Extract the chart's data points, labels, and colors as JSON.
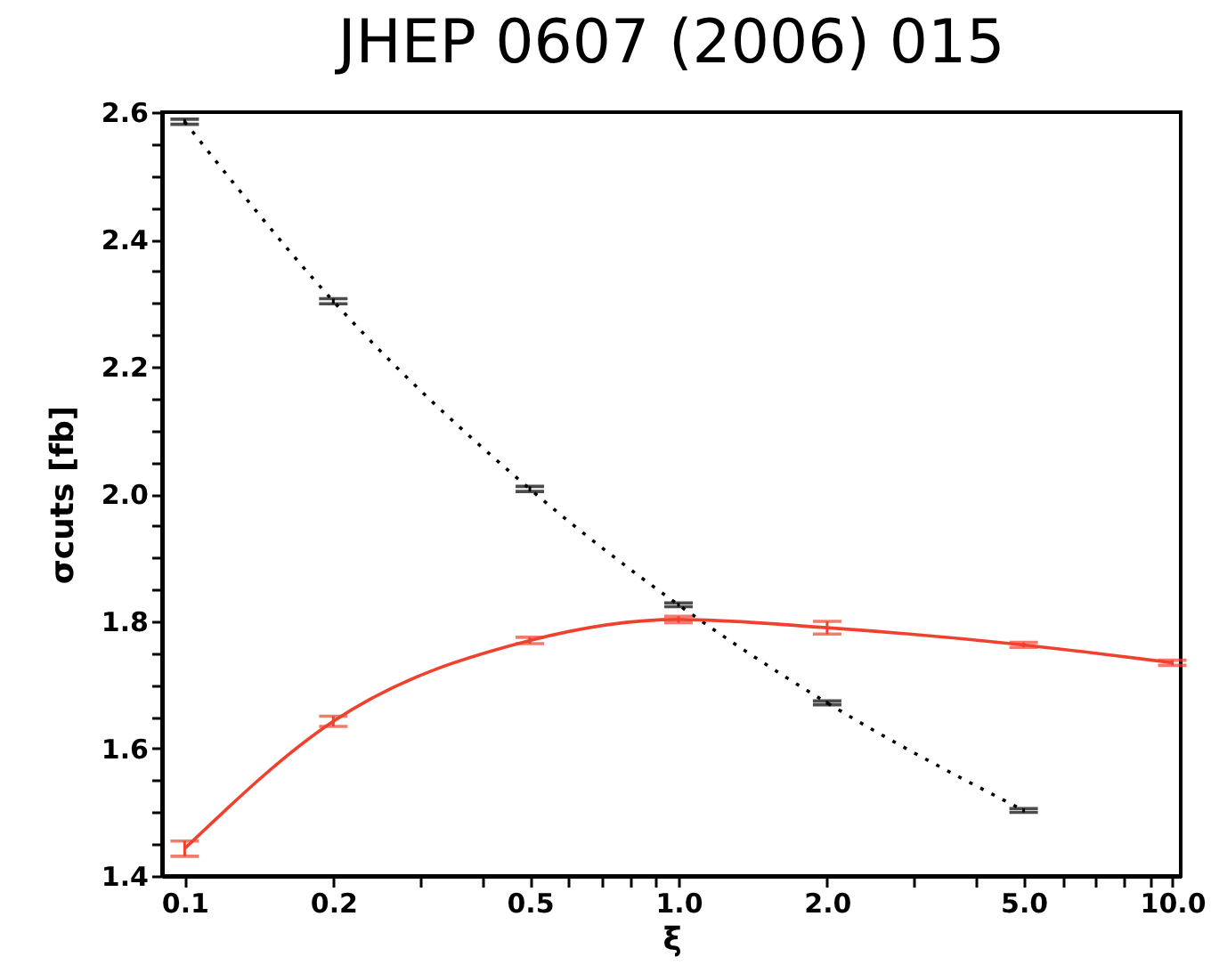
{
  "chart_data": {
    "type": "line",
    "title": "JHEP 0607 (2006) 015",
    "xlabel": "ξ",
    "ylabel": "σcuts [fb]",
    "log": "x",
    "grid": false,
    "marker": "none",
    "xlim": [
      0.09,
      10.4
    ],
    "xticks": [
      0.1,
      0.2,
      {
        "value": 0.3,
        "label": null
      },
      {
        "value": 0.4,
        "label": null
      },
      0.5,
      {
        "value": 0.6,
        "label": null
      },
      {
        "value": 0.7,
        "label": null
      },
      {
        "value": 0.8,
        "label": null
      },
      {
        "value": 0.9,
        "label": null
      },
      {
        "value": 1,
        "label": "1.0"
      },
      {
        "value": 2,
        "label": "2.0"
      },
      {
        "value": 3,
        "label": null
      },
      {
        "value": 4,
        "label": null
      },
      {
        "value": 5,
        "label": "5.0"
      },
      {
        "value": 6,
        "label": null
      },
      {
        "value": 7,
        "label": null
      },
      {
        "value": 8,
        "label": null
      },
      {
        "value": 9,
        "label": null
      },
      {
        "value": 10,
        "label": "10.0"
      }
    ],
    "ylim": [
      1.4,
      2.6
    ],
    "yticks": [
      1.4,
      {
        "value": 1.45,
        "label": null
      },
      {
        "value": 1.5,
        "label": null
      },
      {
        "value": 1.55,
        "label": null
      },
      1.6,
      {
        "value": 1.65,
        "label": null
      },
      {
        "value": 1.7,
        "label": null
      },
      {
        "value": 1.75,
        "label": null
      },
      1.8,
      {
        "value": 1.85,
        "label": null
      },
      {
        "value": 1.9,
        "label": null
      },
      {
        "value": 1.95,
        "label": null
      },
      {
        "value": 2.0,
        "label": "2.0"
      },
      {
        "value": 2.05,
        "label": null
      },
      {
        "value": 2.1,
        "label": null
      },
      {
        "value": 2.15,
        "label": null
      },
      2.2,
      {
        "value": 2.25,
        "label": null
      },
      {
        "value": 2.3,
        "label": null
      },
      {
        "value": 2.35,
        "label": null
      },
      2.4,
      {
        "value": 2.45,
        "label": null
      },
      {
        "value": 2.5,
        "label": null
      },
      {
        "value": 2.55,
        "label": null
      },
      2.6
    ],
    "series": [
      {
        "color": "#000000",
        "line_style": "dotted",
        "x": [
          0.1,
          0.2,
          0.5,
          1,
          2,
          5
        ],
        "values": [
          2.585,
          2.303,
          2.008,
          1.826,
          1.672,
          1.503
        ],
        "errors": [
          0.004,
          0.004,
          0.004,
          0.003,
          0.003,
          0.003
        ]
      },
      {
        "color": "#f0412f",
        "line_style": "solid",
        "x": [
          0.1,
          0.2,
          0.5,
          1,
          2,
          5,
          10
        ],
        "values": [
          1.443,
          1.643,
          1.77,
          1.803,
          1.79,
          1.763,
          1.735
        ],
        "errors": [
          0.012,
          0.008,
          0.005,
          0.005,
          0.01,
          0.004,
          0.004
        ]
      }
    ]
  }
}
